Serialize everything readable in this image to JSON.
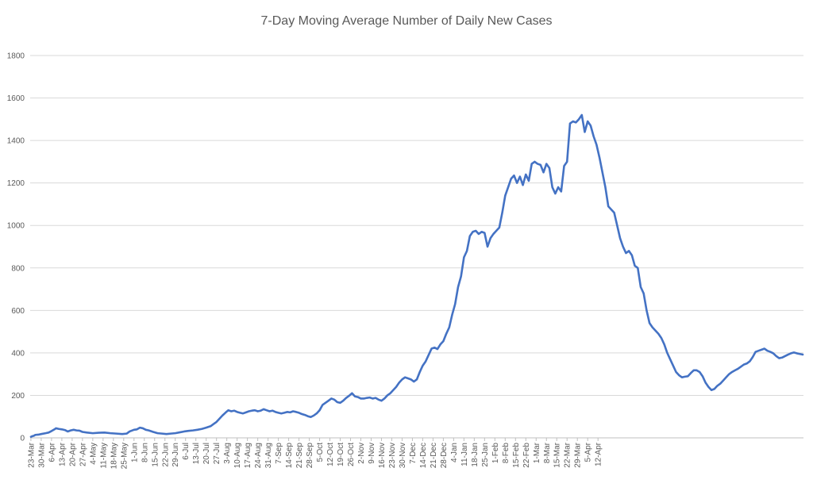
{
  "chart_data": {
    "type": "line",
    "title": "7-Day Moving Average Number of Daily New Cases",
    "xlabel": "",
    "ylabel": "",
    "ylim": [
      0,
      1800
    ],
    "yticks": [
      0,
      200,
      400,
      600,
      800,
      1000,
      1200,
      1400,
      1600,
      1800
    ],
    "grid": true,
    "legend": "none",
    "x_tick_labels": [
      "23-Mar",
      "30-Mar",
      "6-Apr",
      "13-Apr",
      "20-Apr",
      "27-Apr",
      "4-May",
      "11-May",
      "18-May",
      "25-May",
      "1-Jun",
      "8-Jun",
      "15-Jun",
      "22-Jun",
      "29-Jun",
      "6-Jul",
      "13-Jul",
      "20-Jul",
      "27-Jul",
      "3-Aug",
      "10-Aug",
      "17-Aug",
      "24-Aug",
      "31-Aug",
      "7-Sep",
      "14-Sep",
      "21-Sep",
      "28-Sep",
      "5-Oct",
      "12-Oct",
      "19-Oct",
      "26-Oct",
      "2-Nov",
      "9-Nov",
      "16-Nov",
      "23-Nov",
      "30-Nov",
      "7-Dec",
      "14-Dec",
      "21-Dec",
      "28-Dec",
      "4-Jan",
      "11-Jan",
      "18-Jan",
      "25-Jan",
      "1-Feb",
      "8-Feb",
      "15-Feb",
      "22-Feb",
      "1-Mar",
      "8-Mar",
      "15-Mar",
      "22-Mar",
      "29-Mar",
      "5-Apr",
      "12-Apr"
    ],
    "color": "#4472C4",
    "series": [
      {
        "values": [
          [
            0,
            5
          ],
          [
            1,
            8
          ],
          [
            2,
            10
          ],
          [
            3,
            14
          ],
          [
            5,
            15
          ],
          [
            7,
            18
          ],
          [
            10,
            22
          ],
          [
            12,
            25
          ],
          [
            14,
            32
          ],
          [
            16,
            40
          ],
          [
            17,
            45
          ],
          [
            19,
            42
          ],
          [
            21,
            40
          ],
          [
            23,
            37
          ],
          [
            25,
            30
          ],
          [
            27,
            35
          ],
          [
            29,
            38
          ],
          [
            31,
            35
          ],
          [
            33,
            34
          ],
          [
            35,
            28
          ],
          [
            38,
            25
          ],
          [
            42,
            22
          ],
          [
            46,
            24
          ],
          [
            50,
            25
          ],
          [
            54,
            22
          ],
          [
            58,
            20
          ],
          [
            62,
            18
          ],
          [
            65,
            20
          ],
          [
            67,
            30
          ],
          [
            70,
            38
          ],
          [
            72,
            40
          ],
          [
            74,
            48
          ],
          [
            76,
            45
          ],
          [
            78,
            38
          ],
          [
            80,
            35
          ],
          [
            83,
            28
          ],
          [
            86,
            22
          ],
          [
            89,
            20
          ],
          [
            92,
            18
          ],
          [
            95,
            20
          ],
          [
            98,
            22
          ],
          [
            101,
            26
          ],
          [
            104,
            30
          ],
          [
            107,
            33
          ],
          [
            110,
            35
          ],
          [
            113,
            38
          ],
          [
            116,
            42
          ],
          [
            119,
            48
          ],
          [
            122,
            55
          ],
          [
            124,
            65
          ],
          [
            126,
            75
          ],
          [
            128,
            90
          ],
          [
            130,
            105
          ],
          [
            132,
            118
          ],
          [
            134,
            130
          ],
          [
            136,
            125
          ],
          [
            138,
            128
          ],
          [
            140,
            122
          ],
          [
            142,
            118
          ],
          [
            144,
            115
          ],
          [
            146,
            120
          ],
          [
            148,
            125
          ],
          [
            150,
            128
          ],
          [
            152,
            130
          ],
          [
            154,
            125
          ],
          [
            156,
            128
          ],
          [
            158,
            135
          ],
          [
            160,
            130
          ],
          [
            162,
            125
          ],
          [
            164,
            128
          ],
          [
            166,
            122
          ],
          [
            168,
            118
          ],
          [
            170,
            115
          ],
          [
            172,
            118
          ],
          [
            174,
            122
          ],
          [
            176,
            120
          ],
          [
            178,
            125
          ],
          [
            180,
            122
          ],
          [
            182,
            118
          ],
          [
            184,
            112
          ],
          [
            186,
            108
          ],
          [
            188,
            102
          ],
          [
            190,
            98
          ],
          [
            192,
            105
          ],
          [
            194,
            115
          ],
          [
            196,
            130
          ],
          [
            198,
            155
          ],
          [
            200,
            165
          ],
          [
            202,
            175
          ],
          [
            204,
            185
          ],
          [
            206,
            180
          ],
          [
            208,
            168
          ],
          [
            210,
            165
          ],
          [
            212,
            175
          ],
          [
            214,
            188
          ],
          [
            216,
            198
          ],
          [
            218,
            210
          ],
          [
            220,
            195
          ],
          [
            222,
            192
          ],
          [
            224,
            185
          ],
          [
            226,
            185
          ],
          [
            228,
            188
          ],
          [
            230,
            190
          ],
          [
            232,
            185
          ],
          [
            234,
            188
          ],
          [
            236,
            180
          ],
          [
            238,
            175
          ],
          [
            240,
            185
          ],
          [
            242,
            200
          ],
          [
            244,
            210
          ],
          [
            246,
            225
          ],
          [
            248,
            240
          ],
          [
            250,
            260
          ],
          [
            252,
            275
          ],
          [
            254,
            285
          ],
          [
            256,
            280
          ],
          [
            258,
            275
          ],
          [
            260,
            265
          ],
          [
            262,
            275
          ],
          [
            264,
            310
          ],
          [
            266,
            340
          ],
          [
            268,
            360
          ],
          [
            270,
            390
          ],
          [
            272,
            420
          ],
          [
            274,
            425
          ],
          [
            276,
            418
          ],
          [
            278,
            440
          ],
          [
            280,
            455
          ],
          [
            282,
            490
          ],
          [
            284,
            520
          ],
          [
            286,
            580
          ],
          [
            288,
            630
          ],
          [
            290,
            710
          ],
          [
            292,
            760
          ],
          [
            294,
            850
          ],
          [
            296,
            880
          ],
          [
            298,
            950
          ],
          [
            300,
            970
          ],
          [
            302,
            975
          ],
          [
            304,
            960
          ],
          [
            306,
            970
          ],
          [
            308,
            965
          ],
          [
            310,
            900
          ],
          [
            312,
            940
          ],
          [
            314,
            960
          ],
          [
            316,
            975
          ],
          [
            318,
            990
          ],
          [
            320,
            1060
          ],
          [
            322,
            1140
          ],
          [
            324,
            1180
          ],
          [
            326,
            1220
          ],
          [
            328,
            1235
          ],
          [
            330,
            1200
          ],
          [
            332,
            1230
          ],
          [
            334,
            1190
          ],
          [
            336,
            1240
          ],
          [
            338,
            1210
          ],
          [
            340,
            1290
          ],
          [
            342,
            1300
          ],
          [
            344,
            1290
          ],
          [
            346,
            1285
          ],
          [
            348,
            1250
          ],
          [
            350,
            1290
          ],
          [
            352,
            1270
          ],
          [
            354,
            1180
          ],
          [
            356,
            1150
          ],
          [
            358,
            1180
          ],
          [
            360,
            1160
          ],
          [
            362,
            1280
          ],
          [
            364,
            1300
          ],
          [
            366,
            1480
          ],
          [
            368,
            1490
          ],
          [
            370,
            1485
          ],
          [
            372,
            1500
          ],
          [
            374,
            1520
          ],
          [
            376,
            1440
          ],
          [
            378,
            1490
          ],
          [
            380,
            1470
          ],
          [
            382,
            1420
          ],
          [
            384,
            1380
          ],
          [
            386,
            1320
          ],
          [
            388,
            1250
          ],
          [
            390,
            1180
          ],
          [
            392,
            1090
          ],
          [
            394,
            1075
          ],
          [
            396,
            1060
          ],
          [
            398,
            1000
          ],
          [
            400,
            940
          ],
          [
            402,
            900
          ],
          [
            404,
            870
          ],
          [
            406,
            880
          ],
          [
            408,
            860
          ],
          [
            410,
            810
          ],
          [
            412,
            800
          ],
          [
            414,
            710
          ],
          [
            416,
            680
          ],
          [
            418,
            600
          ],
          [
            420,
            540
          ],
          [
            422,
            520
          ],
          [
            424,
            505
          ],
          [
            426,
            490
          ],
          [
            428,
            470
          ],
          [
            430,
            440
          ],
          [
            432,
            400
          ],
          [
            434,
            370
          ],
          [
            436,
            340
          ],
          [
            438,
            310
          ],
          [
            440,
            295
          ],
          [
            442,
            285
          ],
          [
            444,
            288
          ],
          [
            446,
            290
          ],
          [
            448,
            305
          ],
          [
            450,
            318
          ],
          [
            452,
            318
          ],
          [
            454,
            310
          ],
          [
            456,
            290
          ],
          [
            458,
            260
          ],
          [
            460,
            240
          ],
          [
            462,
            225
          ],
          [
            464,
            230
          ],
          [
            466,
            245
          ],
          [
            468,
            255
          ],
          [
            470,
            270
          ],
          [
            472,
            285
          ],
          [
            474,
            300
          ],
          [
            476,
            310
          ],
          [
            478,
            318
          ],
          [
            480,
            325
          ],
          [
            482,
            335
          ],
          [
            484,
            345
          ],
          [
            486,
            350
          ],
          [
            488,
            360
          ],
          [
            490,
            380
          ],
          [
            492,
            405
          ],
          [
            494,
            410
          ],
          [
            496,
            415
          ],
          [
            498,
            420
          ],
          [
            500,
            410
          ],
          [
            502,
            405
          ],
          [
            504,
            398
          ],
          [
            506,
            385
          ],
          [
            508,
            375
          ],
          [
            510,
            378
          ],
          [
            512,
            385
          ],
          [
            514,
            392
          ],
          [
            516,
            398
          ],
          [
            518,
            402
          ],
          [
            520,
            398
          ],
          [
            522,
            395
          ],
          [
            524,
            392
          ]
        ]
      }
    ]
  }
}
